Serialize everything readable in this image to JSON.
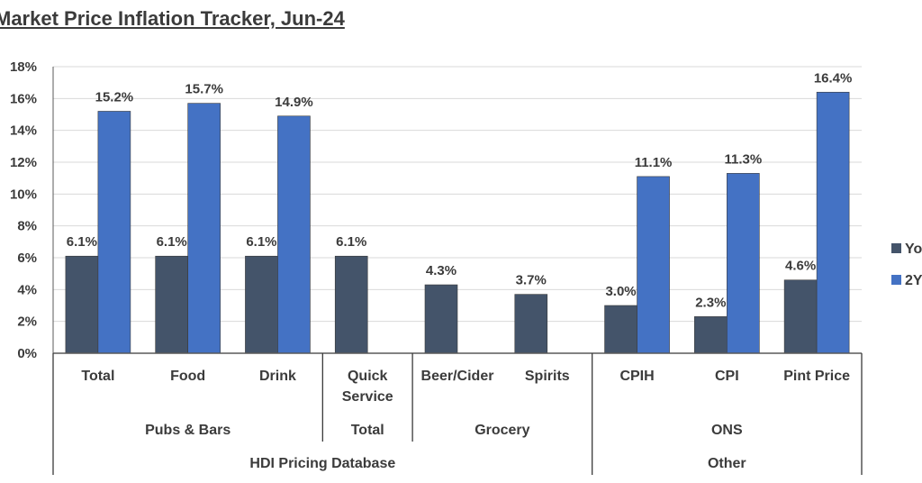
{
  "title": "Market Price Inflation Tracker, Jun-24",
  "chart_data": {
    "type": "bar",
    "ylim": [
      0,
      18
    ],
    "y_step": 2,
    "y_tick_format": "%",
    "grid": true,
    "legend_position": "right",
    "categories": [
      [
        "Total"
      ],
      [
        "Food"
      ],
      [
        "Drink"
      ],
      [
        "Quick",
        "Service"
      ],
      [
        "Beer/Cider"
      ],
      [
        "Spirits"
      ],
      [
        "CPIH"
      ],
      [
        "CPI"
      ],
      [
        "Pint Price"
      ]
    ],
    "series": [
      {
        "name": "Yo",
        "color": "#44546a",
        "values": [
          6.1,
          6.1,
          6.1,
          6.1,
          4.3,
          3.7,
          3.0,
          2.3,
          4.6
        ],
        "labels": [
          "6.1%",
          "6.1%",
          "6.1%",
          "6.1%",
          "4.3%",
          "3.7%",
          "3.0%",
          "2.3%",
          "4.6%"
        ]
      },
      {
        "name": "2Y",
        "color": "#4472c4",
        "values": [
          15.2,
          15.7,
          14.9,
          null,
          null,
          null,
          11.1,
          11.3,
          16.4
        ],
        "labels": [
          "15.2%",
          "15.7%",
          "14.9%",
          null,
          null,
          null,
          "11.1%",
          "11.3%",
          "16.4%"
        ]
      }
    ],
    "group_level_1": [
      {
        "label": "Pubs & Bars",
        "start": 0,
        "end": 2
      },
      {
        "label": "Total",
        "start": 3,
        "end": 3
      },
      {
        "label": "Grocery",
        "start": 4,
        "end": 5
      },
      {
        "label": "ONS",
        "start": 6,
        "end": 8
      }
    ],
    "group_level_2": [
      {
        "label": "HDI Pricing Database",
        "start": 0,
        "end": 5
      },
      {
        "label": "Other",
        "start": 6,
        "end": 8
      }
    ]
  }
}
